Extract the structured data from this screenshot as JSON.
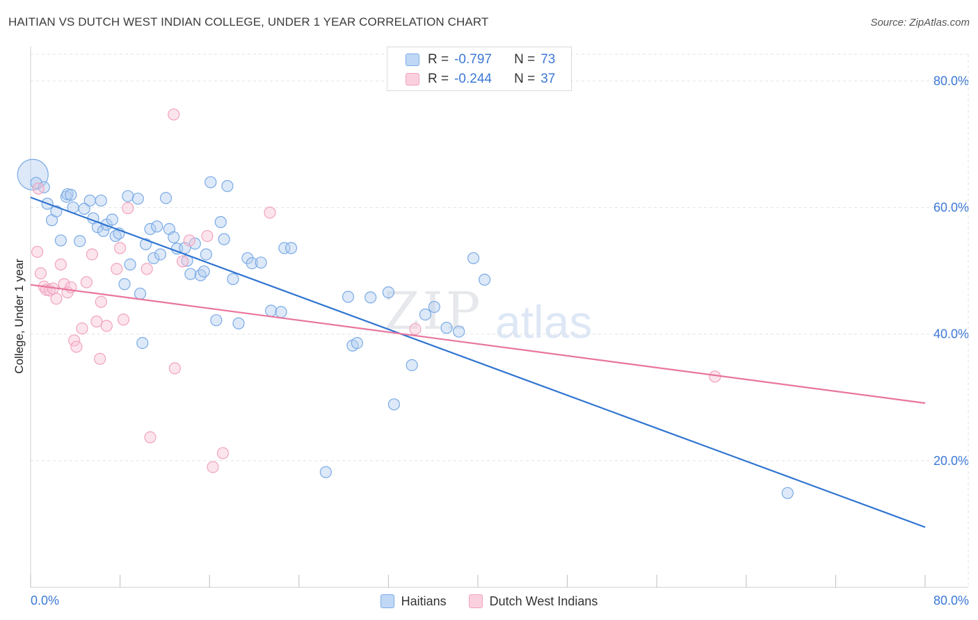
{
  "chart_data": {
    "type": "scatter",
    "title": "HAITIAN VS DUTCH WEST INDIAN COLLEGE, UNDER 1 YEAR CORRELATION CHART",
    "source": "Source: ZipAtlas.com",
    "xlabel": "",
    "ylabel": "College, Under 1 year",
    "xlim": [
      0,
      80
    ],
    "ylim": [
      0,
      84
    ],
    "x_tick_labels": [
      "0.0%",
      "80.0%"
    ],
    "y_ticks": [
      20,
      40,
      60,
      80
    ],
    "y_tick_labels": [
      "20.0%",
      "40.0%",
      "60.0%",
      "80.0%"
    ],
    "grid": true,
    "watermark": {
      "zip": "ZIP",
      "atlas": "atlas"
    },
    "legend_top": [
      {
        "r_label": "R =",
        "r_value": "-0.797",
        "n_label": "N =",
        "n_value": "73"
      },
      {
        "r_label": "R =",
        "r_value": "-0.244",
        "n_label": "N =",
        "n_value": "37"
      }
    ],
    "series": [
      {
        "name": "Haitians",
        "color": "#7aaae6",
        "line_color": "#2f74d0",
        "trend": {
          "x0": 0,
          "y0": 61.6,
          "x1": 80,
          "y1": 9.5
        },
        "points": [
          [
            0.2,
            65.2
          ],
          [
            0.5,
            63.9
          ],
          [
            1.2,
            63.2
          ],
          [
            1.5,
            60.6
          ],
          [
            1.9,
            58.0
          ],
          [
            2.3,
            59.4
          ],
          [
            2.7,
            54.8
          ],
          [
            3.2,
            61.7
          ],
          [
            3.3,
            62.1
          ],
          [
            3.6,
            62.0
          ],
          [
            3.8,
            60.0
          ],
          [
            4.4,
            54.7
          ],
          [
            4.8,
            59.8
          ],
          [
            5.3,
            61.1
          ],
          [
            5.6,
            58.3
          ],
          [
            6.0,
            56.9
          ],
          [
            6.3,
            61.1
          ],
          [
            6.5,
            56.3
          ],
          [
            6.8,
            57.3
          ],
          [
            7.3,
            58.1
          ],
          [
            7.6,
            55.5
          ],
          [
            7.9,
            55.9
          ],
          [
            8.4,
            47.9
          ],
          [
            8.7,
            61.8
          ],
          [
            8.9,
            51.0
          ],
          [
            9.6,
            61.4
          ],
          [
            9.8,
            46.4
          ],
          [
            10.0,
            38.6
          ],
          [
            10.3,
            54.2
          ],
          [
            10.7,
            56.6
          ],
          [
            11.0,
            52.0
          ],
          [
            11.3,
            57.0
          ],
          [
            11.6,
            52.6
          ],
          [
            12.1,
            61.5
          ],
          [
            12.4,
            56.6
          ],
          [
            12.8,
            55.3
          ],
          [
            13.1,
            53.5
          ],
          [
            13.8,
            53.6
          ],
          [
            14.0,
            51.6
          ],
          [
            14.3,
            49.5
          ],
          [
            14.7,
            54.3
          ],
          [
            15.2,
            49.3
          ],
          [
            15.5,
            49.9
          ],
          [
            15.7,
            52.6
          ],
          [
            16.1,
            64.0
          ],
          [
            16.6,
            42.2
          ],
          [
            17.0,
            57.7
          ],
          [
            17.3,
            55.0
          ],
          [
            17.6,
            63.4
          ],
          [
            18.1,
            48.7
          ],
          [
            18.6,
            41.7
          ],
          [
            19.4,
            52.0
          ],
          [
            19.8,
            51.2
          ],
          [
            20.6,
            51.3
          ],
          [
            21.5,
            43.7
          ],
          [
            22.4,
            43.5
          ],
          [
            22.7,
            53.6
          ],
          [
            23.3,
            53.6
          ],
          [
            28.4,
            45.9
          ],
          [
            28.8,
            38.2
          ],
          [
            29.2,
            38.6
          ],
          [
            30.4,
            45.8
          ],
          [
            32.0,
            46.6
          ],
          [
            32.5,
            28.9
          ],
          [
            34.1,
            35.1
          ],
          [
            35.3,
            43.1
          ],
          [
            36.1,
            44.3
          ],
          [
            37.2,
            41.0
          ],
          [
            38.3,
            40.4
          ],
          [
            39.6,
            52.0
          ],
          [
            40.6,
            48.6
          ],
          [
            26.4,
            18.2
          ],
          [
            67.7,
            14.9
          ]
        ]
      },
      {
        "name": "Dutch West Indians",
        "color": "#f0a3bd",
        "line_color": "#e8759c",
        "trend": {
          "x0": 0,
          "y0": 47.8,
          "x1": 80,
          "y1": 29.1
        },
        "points": [
          [
            0.6,
            53.0
          ],
          [
            0.7,
            63.0
          ],
          [
            0.9,
            49.6
          ],
          [
            1.2,
            47.5
          ],
          [
            1.4,
            47.0
          ],
          [
            1.7,
            46.9
          ],
          [
            2.0,
            47.2
          ],
          [
            2.3,
            45.6
          ],
          [
            2.7,
            51.0
          ],
          [
            3.0,
            47.9
          ],
          [
            3.3,
            46.6
          ],
          [
            3.6,
            47.4
          ],
          [
            3.9,
            39.0
          ],
          [
            4.1,
            38.0
          ],
          [
            4.6,
            40.9
          ],
          [
            5.0,
            48.2
          ],
          [
            5.5,
            52.6
          ],
          [
            5.9,
            42.0
          ],
          [
            6.2,
            36.1
          ],
          [
            6.3,
            45.1
          ],
          [
            6.8,
            41.3
          ],
          [
            7.7,
            50.3
          ],
          [
            8.0,
            53.6
          ],
          [
            8.3,
            42.3
          ],
          [
            8.7,
            59.9
          ],
          [
            10.4,
            50.3
          ],
          [
            10.7,
            23.7
          ],
          [
            12.9,
            34.6
          ],
          [
            12.8,
            74.7
          ],
          [
            13.6,
            51.5
          ],
          [
            14.2,
            54.8
          ],
          [
            15.8,
            55.5
          ],
          [
            16.3,
            19.0
          ],
          [
            17.2,
            21.2
          ],
          [
            21.4,
            59.2
          ],
          [
            34.4,
            40.8
          ],
          [
            61.2,
            33.3
          ]
        ]
      }
    ]
  }
}
